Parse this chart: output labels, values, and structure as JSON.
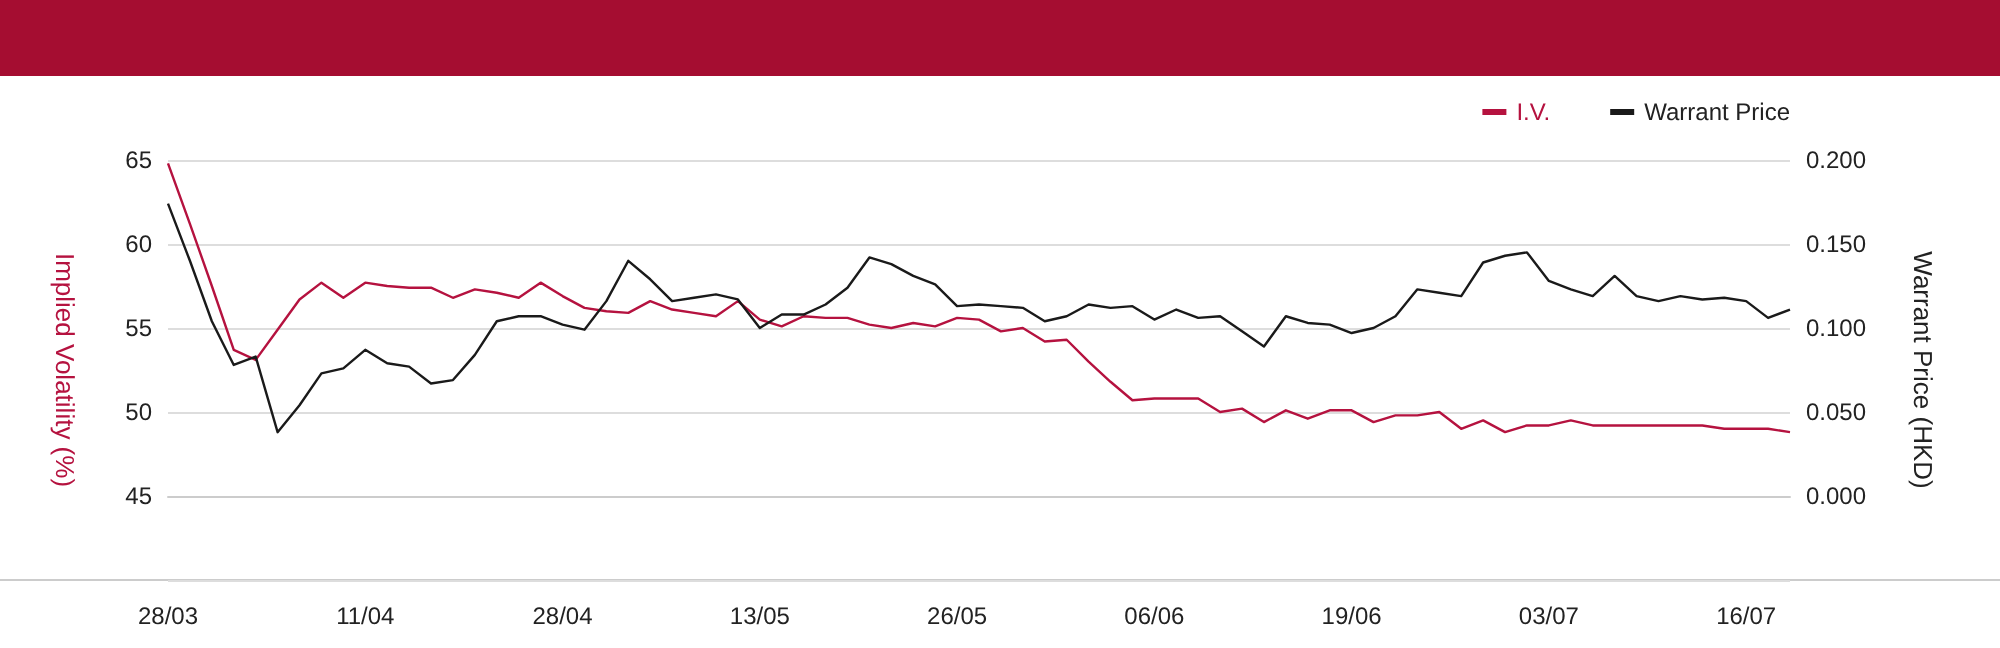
{
  "chart_data": {
    "type": "line",
    "ylabel": "Implied Volatility (%)",
    "y2label": "Warrant Price (HKD)",
    "categories": [
      "28/03",
      null,
      null,
      null,
      null,
      null,
      null,
      null,
      null,
      "11/04",
      null,
      null,
      null,
      null,
      null,
      null,
      null,
      null,
      "28/04",
      null,
      null,
      null,
      null,
      null,
      null,
      null,
      null,
      "13/05",
      null,
      null,
      null,
      null,
      null,
      null,
      null,
      null,
      "26/05",
      null,
      null,
      null,
      null,
      null,
      null,
      null,
      null,
      "06/06",
      null,
      null,
      null,
      null,
      null,
      null,
      null,
      null,
      "19/06",
      null,
      null,
      null,
      null,
      null,
      null,
      null,
      null,
      "03/07",
      null,
      null,
      null,
      null,
      null,
      null,
      null,
      null,
      "16/07",
      null,
      null
    ],
    "series": [
      {
        "name": "I.V.",
        "color": "#b5123f",
        "values": [
          64.8,
          61.2,
          57.5,
          53.7,
          53.1,
          54.9,
          56.7,
          57.7,
          56.8,
          57.7,
          57.5,
          57.4,
          57.4,
          56.8,
          57.3,
          57.1,
          56.8,
          57.7,
          56.9,
          56.2,
          56.0,
          55.9,
          56.6,
          56.1,
          55.9,
          55.7,
          56.6,
          55.5,
          55.1,
          55.7,
          55.6,
          55.6,
          55.2,
          55.0,
          55.3,
          55.1,
          55.6,
          55.5,
          54.8,
          55.0,
          54.2,
          54.3,
          53.0,
          51.8,
          50.7,
          50.8,
          50.8,
          50.8,
          50.0,
          50.2,
          49.4,
          50.1,
          49.6,
          50.1,
          50.1,
          49.4,
          49.8,
          49.8,
          50.0,
          49.0,
          49.5,
          48.8,
          49.2,
          49.2,
          49.5,
          49.2,
          49.2,
          49.2,
          49.2,
          49.2,
          49.2,
          49.0,
          49.0,
          49.0,
          48.8
        ]
      },
      {
        "name": "Warrant Price",
        "color": "#1a1a1a",
        "axis": "y2",
        "values": [
          0.174,
          0.14,
          0.104,
          0.078,
          0.083,
          0.038,
          0.054,
          0.073,
          0.076,
          0.087,
          0.079,
          0.077,
          0.067,
          0.069,
          0.084,
          0.104,
          0.107,
          0.107,
          0.102,
          0.099,
          0.116,
          0.14,
          0.129,
          0.116,
          0.118,
          0.12,
          0.117,
          0.1,
          0.108,
          0.108,
          0.114,
          0.124,
          0.142,
          0.138,
          0.131,
          0.126,
          0.113,
          0.114,
          0.113,
          0.112,
          0.104,
          0.107,
          0.114,
          0.112,
          0.113,
          0.105,
          0.111,
          0.106,
          0.107,
          0.098,
          0.089,
          0.107,
          0.103,
          0.102,
          0.097,
          0.1,
          0.107,
          0.123,
          0.121,
          0.119,
          0.139,
          0.143,
          0.145,
          0.128,
          0.123,
          0.119,
          0.131,
          0.119,
          0.116,
          0.119,
          0.117,
          0.118,
          0.116,
          0.106,
          0.111
        ]
      }
    ],
    "ylim": [
      40,
      65
    ],
    "yticks": [
      {
        "value": 40,
        "label": null
      },
      45,
      50,
      55,
      60,
      65
    ],
    "y2lim": [
      -0.05,
      0.2
    ],
    "y2ticks": [
      {
        "value": -0.05,
        "label": null
      },
      {
        "value": 0,
        "label": "0.000"
      },
      {
        "value": 0.05,
        "label": "0.050"
      },
      {
        "value": 0.1,
        "label": "0.100"
      },
      {
        "value": 0.15,
        "label": "0.150"
      },
      {
        "value": 0.2,
        "label": "0.200"
      }
    ],
    "grid": "y",
    "legend": "top right",
    "marker": "none",
    "line_style": "solid"
  }
}
